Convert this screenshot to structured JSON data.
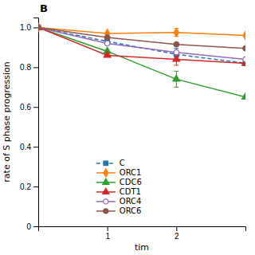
{
  "chart_data": {
    "type": "line",
    "title": "B",
    "x_label": "tim",
    "y_label": "rate of S phase progression",
    "x": [
      0,
      1,
      2,
      3
    ],
    "series": [
      {
        "name": "C",
        "values": [
          1.0,
          0.93,
          0.865,
          0.82
        ],
        "errors": [
          null,
          null,
          0.03,
          null
        ],
        "marker": "square",
        "line_style": "dashed"
      },
      {
        "name": "ORC1",
        "values": [
          1.0,
          0.97,
          0.975,
          0.96
        ],
        "errors": [
          null,
          null,
          0.02,
          null
        ],
        "marker": "diamond",
        "line_style": "solid"
      },
      {
        "name": "CDC6",
        "values": [
          1.0,
          0.88,
          0.74,
          0.65
        ],
        "errors": [
          null,
          null,
          0.04,
          null
        ],
        "marker": "triangle",
        "line_style": "solid"
      },
      {
        "name": "CDT1",
        "values": [
          1.0,
          0.86,
          0.84,
          0.82
        ],
        "errors": [
          null,
          null,
          0.03,
          null
        ],
        "marker": "triangle",
        "line_style": "solid"
      },
      {
        "name": "ORC4",
        "values": [
          1.0,
          0.92,
          0.875,
          0.84
        ],
        "errors": [
          null,
          null,
          null,
          null
        ],
        "marker": "circle-open",
        "line_style": "solid"
      },
      {
        "name": "ORC6",
        "values": [
          1.0,
          0.95,
          0.915,
          0.895
        ],
        "errors": [
          null,
          null,
          null,
          null
        ],
        "marker": "circle",
        "line_style": "solid"
      }
    ],
    "xlim": [
      0,
      3
    ],
    "xticks": [
      1,
      2
    ],
    "ylim": [
      0,
      1.05
    ],
    "yticks": [
      0,
      0.2,
      0.4,
      0.6,
      0.8,
      {
        "value": 1.0,
        "label": "1.0"
      }
    ],
    "grid": false,
    "legend": "lower left"
  }
}
